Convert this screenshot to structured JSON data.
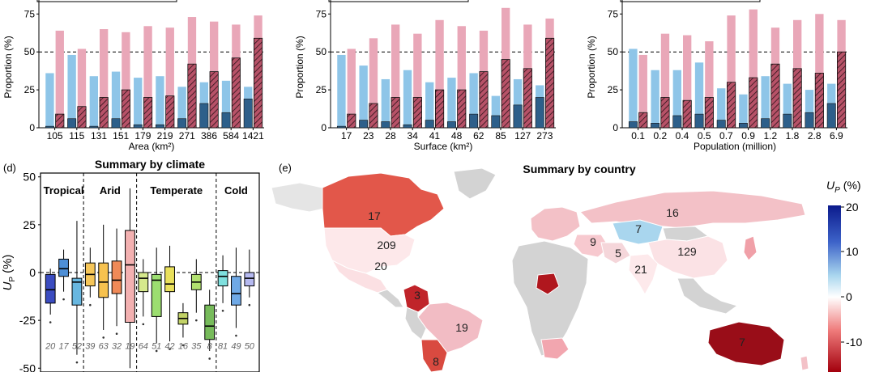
{
  "colors": {
    "blue_bar": "#8ec5e8",
    "pink_bar": "#e9a7b8",
    "hatch_bar": "#b14a5f",
    "ocean": "#ffffff",
    "land_nodata": "#d3d3d3"
  },
  "chart_data": [
    {
      "type": "bar",
      "panel": "a",
      "categories": [
        "105",
        "115",
        "131",
        "151",
        "179",
        "219",
        "271",
        "386",
        "584",
        "1421"
      ],
      "xlabel": "Area (km²)",
      "ylabel": "Proportion (%)",
      "yticks": [
        "0",
        "25",
        "50",
        "75"
      ],
      "ylim": [
        0,
        80
      ],
      "reference_line": 50,
      "series": [
        {
          "style": "light-blue",
          "values": [
            36,
            48,
            34,
            37,
            33,
            34,
            27,
            30,
            31,
            27
          ]
        },
        {
          "style": "light-blue-dark",
          "values": [
            1,
            6,
            1,
            6,
            2,
            2,
            6,
            16,
            10,
            19
          ]
        },
        {
          "style": "pink",
          "values": [
            64,
            52,
            65,
            63,
            67,
            66,
            73,
            70,
            68,
            74
          ]
        },
        {
          "style": "hatched",
          "values": [
            9,
            14,
            20,
            25,
            20,
            21,
            42,
            37,
            46,
            59
          ]
        }
      ]
    },
    {
      "type": "bar",
      "panel": "b",
      "categories": [
        "17",
        "23",
        "28",
        "34",
        "41",
        "48",
        "62",
        "85",
        "127",
        "273"
      ],
      "xlabel": "Surface (km²)",
      "ylabel": "Proportion (%)",
      "yticks": [
        "0",
        "25",
        "50",
        "75"
      ],
      "ylim": [
        0,
        80
      ],
      "reference_line": 50,
      "series": [
        {
          "style": "light-blue",
          "values": [
            48,
            41,
            32,
            38,
            30,
            33,
            36,
            21,
            32,
            28
          ]
        },
        {
          "style": "light-blue-dark",
          "values": [
            1,
            5,
            4,
            2,
            5,
            4,
            9,
            8,
            15,
            20
          ]
        },
        {
          "style": "pink",
          "values": [
            52,
            59,
            68,
            62,
            71,
            67,
            64,
            79,
            68,
            72
          ]
        },
        {
          "style": "hatched",
          "values": [
            9,
            16,
            20,
            20,
            25,
            25,
            37,
            45,
            39,
            59
          ]
        }
      ]
    },
    {
      "type": "bar",
      "panel": "c",
      "categories": [
        "0.1",
        "0.2",
        "0.4",
        "0.5",
        "0.7",
        "0.9",
        "1.2",
        "1.8",
        "2.8",
        "6.9"
      ],
      "xlabel": "Population (million)",
      "ylabel": "Proportion (%)",
      "yticks": [
        "0",
        "25",
        "50",
        "75"
      ],
      "ylim": [
        0,
        80
      ],
      "reference_line": 50,
      "series": [
        {
          "style": "light-blue",
          "values": [
            52,
            38,
            38,
            43,
            26,
            22,
            34,
            29,
            25,
            29
          ]
        },
        {
          "style": "light-blue-dark",
          "values": [
            4,
            3,
            8,
            9,
            5,
            3,
            6,
            9,
            10,
            16
          ]
        },
        {
          "style": "pink",
          "values": [
            48,
            62,
            61,
            57,
            74,
            78,
            66,
            71,
            75,
            71
          ]
        },
        {
          "style": "hatched",
          "values": [
            10,
            20,
            18,
            20,
            30,
            33,
            42,
            39,
            36,
            50
          ]
        }
      ]
    },
    {
      "type": "box",
      "panel": "d",
      "title": "Summary by climate",
      "ylabel": "U",
      "ylabel_sub": "P",
      "ylabel_unit": "(%)",
      "yticks": [
        "50",
        "25",
        "0",
        "-25",
        "-50"
      ],
      "ylim": [
        -52,
        52
      ],
      "groups": [
        "Tropical",
        "Arid",
        "Temperate",
        "Cold"
      ],
      "boxes": [
        {
          "n": "20",
          "color": "#3b4cc0",
          "q1": -16,
          "median": -9,
          "q3": -1,
          "lo": -22,
          "hi": 2
        },
        {
          "n": "17",
          "color": "#4e8fd6",
          "q1": -2,
          "median": 2,
          "q3": 7,
          "lo": -10,
          "hi": 12
        },
        {
          "n": "52",
          "color": "#68b7e0",
          "q1": -17,
          "median": -5,
          "q3": -3,
          "lo": -43,
          "hi": 27
        },
        {
          "n": "39",
          "color": "#f6c659",
          "q1": -7,
          "median": -1,
          "q3": 5,
          "lo": -13,
          "hi": 13
        },
        {
          "n": "63",
          "color": "#f7c24f",
          "q1": -13,
          "median": -5,
          "q3": 5,
          "lo": -30,
          "hi": 25
        },
        {
          "n": "32",
          "color": "#f08a58",
          "q1": -11,
          "median": -4,
          "q3": 6,
          "lo": -28,
          "hi": 23
        },
        {
          "n": "19",
          "color": "#f3b1b1",
          "q1": -26,
          "median": 4,
          "q3": 22,
          "lo": -50,
          "hi": 44
        },
        {
          "n": "64",
          "color": "#d6e98c",
          "q1": -10,
          "median": -3,
          "q3": 0,
          "lo": -23,
          "hi": 7
        },
        {
          "n": "51",
          "color": "#9cde70",
          "q1": -23,
          "median": -4,
          "q3": -1,
          "lo": -37,
          "hi": 13
        },
        {
          "n": "42",
          "color": "#e9e05c",
          "q1": -10,
          "median": -6,
          "q3": 3,
          "lo": -36,
          "hi": 14
        },
        {
          "n": "16",
          "color": "#c2d266",
          "q1": -27,
          "median": -24,
          "q3": -21,
          "lo": -34,
          "hi": -16
        },
        {
          "n": "35",
          "color": "#b1e06f",
          "q1": -9,
          "median": -5,
          "q3": -1,
          "lo": -21,
          "hi": 7
        },
        {
          "n": "8",
          "color": "#77bb5b",
          "q1": -35,
          "median": -28,
          "q3": -17,
          "lo": -41,
          "hi": -9
        },
        {
          "n": "81",
          "color": "#7fe0de",
          "q1": -7,
          "median": -2,
          "q3": 1,
          "lo": -16,
          "hi": 9
        },
        {
          "n": "49",
          "color": "#6fa9e6",
          "q1": -17,
          "median": -11,
          "q3": -2,
          "lo": -29,
          "hi": 13
        },
        {
          "n": "50",
          "color": "#b5b9f0",
          "q1": -7,
          "median": -3,
          "q3": 0,
          "lo": -13,
          "hi": 12
        }
      ]
    },
    {
      "type": "map",
      "panel": "e",
      "title": "Summary by country",
      "colorbar": {
        "label": "U",
        "label_sub": "P",
        "label_unit": "(%)",
        "ticks": [
          "20",
          "10",
          "0",
          "-10"
        ]
      },
      "country_labels": [
        {
          "label": "17",
          "color": "#e2574a"
        },
        {
          "label": "209",
          "color": "#fde8ea"
        },
        {
          "label": "20",
          "color": "#fbe0e3"
        },
        {
          "label": "16",
          "color": "#f3c1c7"
        },
        {
          "label": "7",
          "color": "#a9d6ee"
        },
        {
          "label": "129",
          "color": "#fbe2e5"
        },
        {
          "label": "9",
          "color": "#f7c9cf"
        },
        {
          "label": "5",
          "color": "#f5d6da"
        },
        {
          "label": "21",
          "color": "#fde9eb"
        },
        {
          "label": "19",
          "color": "#f2bcc4"
        },
        {
          "label": "7",
          "color": "#990d18"
        },
        {
          "label": "3",
          "color": "#c0242a"
        },
        {
          "label": "8",
          "color": "#d94a40"
        }
      ]
    }
  ],
  "panel_labels": {
    "d": "(d)",
    "e": "(e)"
  },
  "boxplot_groups": [
    "Tropical",
    "Arid",
    "Temperate",
    "Cold"
  ]
}
